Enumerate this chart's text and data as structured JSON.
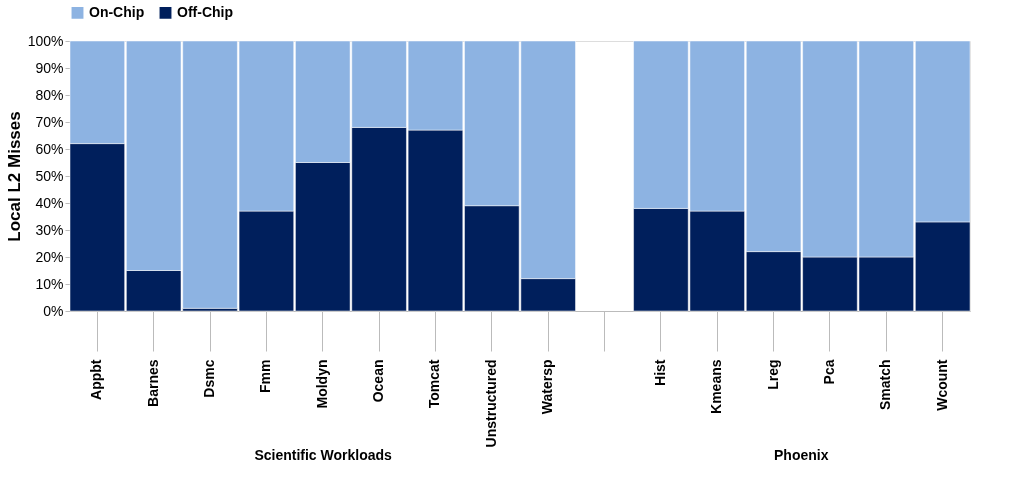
{
  "chart_data": {
    "type": "bar",
    "stacked": true,
    "ylabel": "Local L2 Misses",
    "categories": [
      "Appbt",
      "Barnes",
      "Dsmc",
      "Fmm",
      "Moldyn",
      "Ocean",
      "Tomcat",
      "Unstructured",
      "Watersp",
      null,
      "Hist",
      "Kmeans",
      "Lreg",
      "Pca",
      "Smatch",
      "Wcount"
    ],
    "series": [
      {
        "name": "Off-Chip",
        "color": "#001f5c",
        "values": [
          62,
          15,
          1,
          37,
          55,
          68,
          67,
          39,
          12,
          null,
          38,
          37,
          22,
          20,
          20,
          33
        ]
      },
      {
        "name": "On-Chip",
        "color": "#8db3e2",
        "values": [
          38,
          85,
          99,
          63,
          45,
          32,
          33,
          61,
          88,
          null,
          62,
          63,
          78,
          80,
          80,
          67
        ]
      }
    ],
    "ylim": [
      0,
      100
    ],
    "yticks": [
      {
        "value": 0,
        "label": "0%"
      },
      {
        "value": 10,
        "label": "10%"
      },
      {
        "value": 20,
        "label": "20%"
      },
      {
        "value": 30,
        "label": "30%"
      },
      {
        "value": 40,
        "label": "40%"
      },
      {
        "value": 50,
        "label": "50%"
      },
      {
        "value": 60,
        "label": "60%"
      },
      {
        "value": 70,
        "label": "70%"
      },
      {
        "value": 80,
        "label": "80%"
      },
      {
        "value": 90,
        "label": "90%"
      },
      {
        "value": 100,
        "label": "100%"
      }
    ],
    "annotations": [
      "Scientific Workloads",
      "Phoenix"
    ],
    "legend": "top",
    "grid": false
  }
}
